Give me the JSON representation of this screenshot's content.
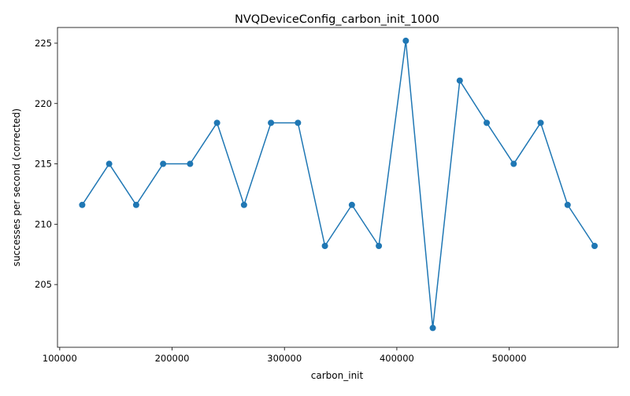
{
  "chart_data": {
    "type": "line",
    "title": "NVQDeviceConfig_carbon_init_1000",
    "xlabel": "carbon_init",
    "ylabel": "successes per second (corrected)",
    "xlim": [
      98000,
      597000
    ],
    "ylim": [
      199.8,
      226.3
    ],
    "xticks": [
      100000,
      200000,
      300000,
      400000,
      500000
    ],
    "xtick_labels": [
      "100000",
      "200000",
      "300000",
      "400000",
      "500000"
    ],
    "yticks": [
      205,
      210,
      215,
      220,
      225
    ],
    "ytick_labels": [
      "205",
      "210",
      "215",
      "220",
      "225"
    ],
    "grid": false,
    "legend": "none",
    "line_color": "#1f77b4",
    "series": [
      {
        "x": [
          120000,
          144000,
          168000,
          192000,
          216000,
          240000,
          264000,
          288000,
          312000,
          336000,
          360000,
          384000,
          408000,
          432000,
          456000,
          480000,
          504000,
          528000,
          552000,
          576000
        ],
        "values": [
          211.6,
          215.0,
          211.6,
          215.0,
          215.0,
          218.4,
          211.6,
          218.4,
          218.4,
          208.2,
          211.6,
          208.2,
          225.2,
          201.4,
          221.9,
          218.4,
          215.0,
          218.4,
          211.6,
          208.2
        ]
      }
    ]
  }
}
